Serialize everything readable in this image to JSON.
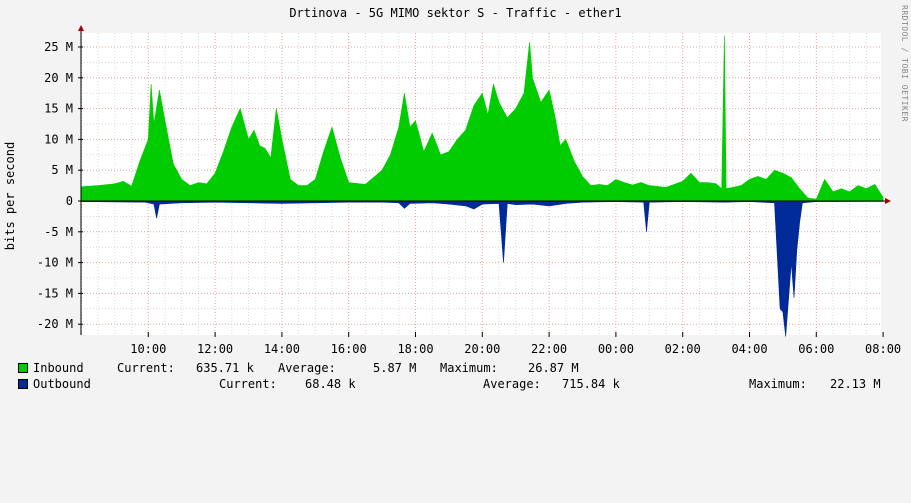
{
  "title": "Drtinova - 5G MIMO sektor S - Traffic - ether1",
  "ylabel": "bits per second",
  "watermark": "RRDTOOL / TOBI OETIKER",
  "colors": {
    "inbound": "#00cc00",
    "outbound": "#002a97",
    "grid_minor": "#e0d4d4",
    "grid_major": "#e7a0a0",
    "background": "#ffffff",
    "axis_arrow": "#a00000"
  },
  "legend": {
    "inbound": {
      "label": "Inbound",
      "current_label": "Current:",
      "current": "635.71 k",
      "average_label": "Average:",
      "average": "5.87 M",
      "maximum_label": "Maximum:",
      "maximum": "26.87 M"
    },
    "outbound": {
      "label": "Outbound",
      "current_label": "Current:",
      "current": "68.48 k",
      "average_label": "Average:",
      "average": "715.84 k",
      "maximum_label": "Maximum:",
      "maximum": "22.13 M"
    }
  },
  "chart_data": {
    "type": "area",
    "ylim": [
      -22,
      27
    ],
    "y_ticks": [
      25,
      20,
      15,
      10,
      5,
      0,
      -5,
      -10,
      -15,
      -20
    ],
    "y_tick_labels": [
      "25 M",
      "20 M",
      "15 M",
      "10 M",
      "5 M",
      "0",
      "-5 M",
      "-10 M",
      "-15 M",
      "-20 M"
    ],
    "x_ticks": [
      "10:00",
      "12:00",
      "14:00",
      "16:00",
      "18:00",
      "20:00",
      "22:00",
      "00:00",
      "02:00",
      "04:00",
      "06:00",
      "08:00"
    ],
    "x_start": "08:00",
    "x_end": "08:15",
    "grid": true,
    "series": [
      {
        "name": "Inbound",
        "points": [
          [
            "08:00",
            2.3
          ],
          [
            "08:30",
            2.5
          ],
          [
            "09:00",
            2.8
          ],
          [
            "09:15",
            3.2
          ],
          [
            "09:30",
            2.4
          ],
          [
            "09:45",
            6.5
          ],
          [
            "10:00",
            10
          ],
          [
            "10:05",
            19
          ],
          [
            "10:10",
            12.5
          ],
          [
            "10:20",
            18
          ],
          [
            "10:30",
            13
          ],
          [
            "10:45",
            6
          ],
          [
            "11:00",
            3.5
          ],
          [
            "11:15",
            2.5
          ],
          [
            "11:30",
            3
          ],
          [
            "11:45",
            2.8
          ],
          [
            "12:00",
            4.5
          ],
          [
            "12:15",
            8
          ],
          [
            "12:30",
            12
          ],
          [
            "12:45",
            15
          ],
          [
            "13:00",
            10
          ],
          [
            "13:10",
            11.5
          ],
          [
            "13:20",
            9
          ],
          [
            "13:30",
            8.5
          ],
          [
            "13:40",
            7
          ],
          [
            "13:50",
            15
          ],
          [
            "14:00",
            10
          ],
          [
            "14:15",
            3.5
          ],
          [
            "14:30",
            2.5
          ],
          [
            "14:45",
            2.5
          ],
          [
            "15:00",
            3.5
          ],
          [
            "15:15",
            8
          ],
          [
            "15:30",
            12
          ],
          [
            "15:45",
            7
          ],
          [
            "16:00",
            3
          ],
          [
            "16:30",
            2.7
          ],
          [
            "17:00",
            5
          ],
          [
            "17:15",
            7.5
          ],
          [
            "17:30",
            12
          ],
          [
            "17:40",
            17.5
          ],
          [
            "17:50",
            12
          ],
          [
            "18:00",
            13
          ],
          [
            "18:15",
            8
          ],
          [
            "18:30",
            11
          ],
          [
            "18:45",
            7.5
          ],
          [
            "19:00",
            8
          ],
          [
            "19:15",
            10
          ],
          [
            "19:30",
            11.5
          ],
          [
            "19:45",
            15.5
          ],
          [
            "20:00",
            17.5
          ],
          [
            "20:10",
            14
          ],
          [
            "20:20",
            19
          ],
          [
            "20:30",
            16
          ],
          [
            "20:45",
            13.5
          ],
          [
            "21:00",
            15
          ],
          [
            "21:15",
            17.5
          ],
          [
            "21:25",
            25.8
          ],
          [
            "21:30",
            20
          ],
          [
            "21:45",
            16
          ],
          [
            "22:00",
            18
          ],
          [
            "22:10",
            14
          ],
          [
            "22:20",
            9
          ],
          [
            "22:30",
            10
          ],
          [
            "22:45",
            6.5
          ],
          [
            "23:00",
            4
          ],
          [
            "23:15",
            2.5
          ],
          [
            "23:30",
            2.7
          ],
          [
            "23:45",
            2.5
          ],
          [
            "00:00",
            3.5
          ],
          [
            "00:15",
            3
          ],
          [
            "00:30",
            2.6
          ],
          [
            "00:45",
            3
          ],
          [
            "01:00",
            2.5
          ],
          [
            "01:30",
            2.2
          ],
          [
            "02:00",
            3.2
          ],
          [
            "02:15",
            4.5
          ],
          [
            "02:30",
            3
          ],
          [
            "02:45",
            3
          ],
          [
            "03:00",
            2.8
          ],
          [
            "03:10",
            2
          ],
          [
            "03:15",
            26.87
          ],
          [
            "03:18",
            2
          ],
          [
            "03:30",
            2.2
          ],
          [
            "03:45",
            2.5
          ],
          [
            "04:00",
            3.5
          ],
          [
            "04:15",
            4
          ],
          [
            "04:30",
            3.5
          ],
          [
            "04:45",
            5
          ],
          [
            "05:00",
            4.5
          ],
          [
            "05:15",
            3.8
          ],
          [
            "05:30",
            2
          ],
          [
            "05:45",
            0.5
          ],
          [
            "06:00",
            0.3
          ],
          [
            "06:15",
            3.5
          ],
          [
            "06:30",
            1.5
          ],
          [
            "06:45",
            2
          ],
          [
            "07:00",
            1.5
          ],
          [
            "07:15",
            2.5
          ],
          [
            "07:30",
            2
          ],
          [
            "07:45",
            2.7
          ],
          [
            "08:00",
            0.6
          ]
        ]
      },
      {
        "name": "Outbound",
        "points": [
          [
            "08:00",
            -0.1
          ],
          [
            "09:55",
            -0.2
          ],
          [
            "10:10",
            -0.5
          ],
          [
            "10:15",
            -2.8
          ],
          [
            "10:20",
            -0.5
          ],
          [
            "11:00",
            -0.3
          ],
          [
            "12:00",
            -0.2
          ],
          [
            "13:00",
            -0.3
          ],
          [
            "14:00",
            -0.4
          ],
          [
            "15:00",
            -0.3
          ],
          [
            "16:00",
            -0.2
          ],
          [
            "17:00",
            -0.2
          ],
          [
            "17:30",
            -0.3
          ],
          [
            "17:40",
            -1.2
          ],
          [
            "17:50",
            -0.4
          ],
          [
            "18:30",
            -0.3
          ],
          [
            "19:00",
            -0.5
          ],
          [
            "19:30",
            -0.8
          ],
          [
            "19:45",
            -1.3
          ],
          [
            "20:00",
            -0.5
          ],
          [
            "20:30",
            -0.4
          ],
          [
            "20:38",
            -10
          ],
          [
            "20:45",
            -0.4
          ],
          [
            "21:00",
            -0.6
          ],
          [
            "21:30",
            -0.5
          ],
          [
            "22:00",
            -0.8
          ],
          [
            "22:30",
            -0.4
          ],
          [
            "23:00",
            -0.2
          ],
          [
            "00:00",
            -0.1
          ],
          [
            "00:50",
            -0.2
          ],
          [
            "00:55",
            -5
          ],
          [
            "01:00",
            -0.2
          ],
          [
            "02:00",
            -0.1
          ],
          [
            "03:15",
            -0.2
          ],
          [
            "04:00",
            -0.1
          ],
          [
            "04:45",
            -0.3
          ],
          [
            "04:55",
            -17.5
          ],
          [
            "05:00",
            -18
          ],
          [
            "05:05",
            -22
          ],
          [
            "05:10",
            -16
          ],
          [
            "05:15",
            -10
          ],
          [
            "05:20",
            -15.7
          ],
          [
            "05:25",
            -8
          ],
          [
            "05:30",
            -3.5
          ],
          [
            "05:35",
            -0.3
          ],
          [
            "06:00",
            -0.1
          ],
          [
            "08:00",
            -0.07
          ]
        ]
      }
    ]
  }
}
